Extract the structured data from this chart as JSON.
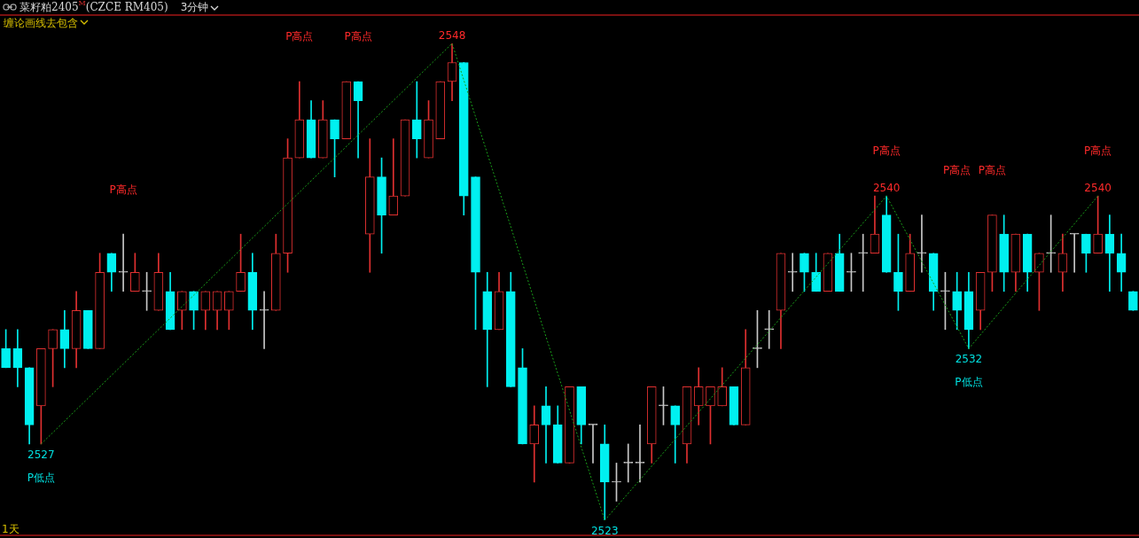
{
  "chart_data": {
    "type": "candlestick",
    "title": "菜籽粕2405$^{M}$(CZCE RM405)",
    "subtitle": "3分钟",
    "categories": [
      null,
      null,
      null,
      null,
      null,
      null,
      null,
      null,
      null,
      null,
      null,
      null,
      null,
      null,
      null,
      null,
      null,
      null,
      null,
      null,
      null,
      null,
      null,
      null,
      null,
      null,
      null,
      null,
      null,
      null,
      null,
      null,
      null,
      null,
      null,
      null,
      null,
      null,
      null,
      null,
      null,
      null,
      null,
      null,
      null,
      null,
      null,
      null,
      null,
      null,
      null,
      null,
      null,
      null,
      null,
      null,
      null,
      null,
      null,
      null,
      null,
      null,
      null,
      null,
      null,
      null,
      null,
      null,
      null,
      null,
      null,
      null,
      null,
      null,
      null,
      null,
      null,
      null,
      null,
      null,
      null,
      null,
      null,
      null,
      null,
      null,
      null,
      null,
      null,
      null,
      null,
      null,
      null,
      null,
      null,
      null,
      null
    ],
    "ohlc": [
      [
        2532,
        2533,
        2531,
        2531
      ],
      [
        2532,
        2533,
        2530,
        2531
      ],
      [
        2531,
        2531,
        2527,
        2528
      ],
      [
        2529,
        2532,
        2527,
        2532
      ],
      [
        2532,
        2533,
        2530,
        2533
      ],
      [
        2533,
        2534,
        2531,
        2532
      ],
      [
        2532,
        2535,
        2531,
        2534
      ],
      [
        2534,
        2534,
        2532,
        2532
      ],
      [
        2532,
        2537,
        2532,
        2536
      ],
      [
        2537,
        2537,
        2535,
        2536
      ],
      [
        2536,
        2538,
        2535,
        2536
      ],
      [
        2535,
        2537,
        2535,
        2536
      ],
      [
        2535,
        2536,
        2534,
        2535
      ],
      [
        2534,
        2537,
        2534,
        2536
      ],
      [
        2535,
        2536,
        2533,
        2533
      ],
      [
        2534,
        2535,
        2533,
        2535
      ],
      [
        2535,
        2535,
        2533,
        2534
      ],
      [
        2534,
        2535,
        2533,
        2535
      ],
      [
        2534,
        2535,
        2533,
        2535
      ],
      [
        2534,
        2535,
        2533,
        2535
      ],
      [
        2535,
        2538,
        2535,
        2536
      ],
      [
        2536,
        2537,
        2533,
        2534
      ],
      [
        2534,
        2535,
        2532,
        2534
      ],
      [
        2534,
        2538,
        2534,
        2537
      ],
      [
        2537,
        2543,
        2536,
        2542
      ],
      [
        2542,
        2546,
        2542,
        2544
      ],
      [
        2544,
        2545,
        2542,
        2542
      ],
      [
        2542,
        2545,
        2542,
        2544
      ],
      [
        2544,
        2544,
        2541,
        2543
      ],
      [
        2543,
        2546,
        2543,
        2546
      ],
      [
        2546,
        2546,
        2542,
        2545
      ],
      [
        2538,
        2543,
        2536,
        2541
      ],
      [
        2541,
        2542,
        2537,
        2539
      ],
      [
        2539,
        2543,
        2539,
        2540
      ],
      [
        2540,
        2544,
        2540,
        2544
      ],
      [
        2544,
        2546,
        2542,
        2543
      ],
      [
        2542,
        2545,
        2542,
        2544
      ],
      [
        2543,
        2546,
        2543,
        2546
      ],
      [
        2546,
        2548,
        2545,
        2547
      ],
      [
        2547,
        2547,
        2539,
        2540
      ],
      [
        2541,
        2541,
        2533,
        2536
      ],
      [
        2535,
        2536,
        2530,
        2533
      ],
      [
        2533,
        2536,
        2533,
        2535
      ],
      [
        2535,
        2536,
        2530,
        2530
      ],
      [
        2531,
        2532,
        2527,
        2527
      ],
      [
        2527,
        2529,
        2525,
        2528
      ],
      [
        2529,
        2530,
        2526,
        2528
      ],
      [
        2528,
        2529,
        2526,
        2526
      ],
      [
        2526,
        2530,
        2526,
        2530
      ],
      [
        2530,
        2530,
        2527,
        2528
      ],
      [
        2528,
        2528,
        2526,
        2528
      ],
      [
        2527,
        2528,
        2523,
        2525
      ],
      [
        2525,
        2526,
        2524,
        2525
      ],
      [
        2526,
        2527,
        2525,
        2526
      ],
      [
        2526,
        2528,
        2525,
        2526
      ],
      [
        2527,
        2530,
        2526,
        2530
      ],
      [
        2529,
        2530,
        2528,
        2529
      ],
      [
        2529,
        2529,
        2526,
        2528
      ],
      [
        2527,
        2530,
        2526,
        2530
      ],
      [
        2529,
        2531,
        2528,
        2530
      ],
      [
        2529,
        2530,
        2527,
        2530
      ],
      [
        2529,
        2531,
        2529,
        2530
      ],
      [
        2530,
        2530,
        2528,
        2528
      ],
      [
        2528,
        2533,
        2528,
        2531
      ],
      [
        2532,
        2534,
        2531,
        2532
      ],
      [
        2533,
        2534,
        2532,
        2533
      ],
      [
        2534,
        2537,
        2532,
        2537
      ],
      [
        2536,
        2537,
        2535,
        2536
      ],
      [
        2537,
        2537,
        2535,
        2536
      ],
      [
        2536,
        2537,
        2535,
        2535
      ],
      [
        2535,
        2537,
        2535,
        2537
      ],
      [
        2537,
        2538,
        2535,
        2535
      ],
      [
        2536,
        2537,
        2535,
        2536
      ],
      [
        2537,
        2538,
        2535,
        2537
      ],
      [
        2537,
        2540,
        2537,
        2538
      ],
      [
        2539,
        2540,
        2536,
        2536
      ],
      [
        2536,
        2538,
        2534,
        2535
      ],
      [
        2535,
        2538,
        2535,
        2537
      ],
      [
        2537,
        2539,
        2536,
        2537
      ],
      [
        2537,
        2537,
        2534,
        2535
      ],
      [
        2535,
        2536,
        2533,
        2535
      ],
      [
        2535,
        2536,
        2533,
        2534
      ],
      [
        2535,
        2536,
        2532,
        2533
      ],
      [
        2534,
        2536,
        2533,
        2536
      ],
      [
        2536,
        2539,
        2535,
        2539
      ],
      [
        2538,
        2539,
        2535,
        2536
      ],
      [
        2536,
        2538,
        2535,
        2538
      ],
      [
        2538,
        2538,
        2535,
        2536
      ],
      [
        2536,
        2537,
        2534,
        2537
      ],
      [
        2537,
        2539,
        2536,
        2537
      ],
      [
        2536,
        2538,
        2535,
        2537
      ],
      [
        2538,
        2538,
        2536,
        2538
      ],
      [
        2538,
        2538,
        2536,
        2537
      ],
      [
        2537,
        2540,
        2537,
        2538
      ],
      [
        2538,
        2539,
        2535,
        2537
      ],
      [
        2537,
        2538,
        2535,
        2536
      ],
      [
        2535,
        2535,
        2534,
        2534
      ]
    ],
    "colors": [
      "#00f0f0",
      "#00f0f0",
      "#00f0f0",
      "#e03030",
      "#e03030",
      "#00f0f0",
      "#e03030",
      "#00f0f0",
      "#e03030",
      "#00f0f0",
      "#c8c8c8",
      "#e03030",
      "#c8c8c8",
      "#e03030",
      "#00f0f0",
      "#e03030",
      "#00f0f0",
      "#e03030",
      "#e03030",
      "#e03030",
      "#e03030",
      "#00f0f0",
      "#c8c8c8",
      "#e03030",
      "#e03030",
      "#e03030",
      "#00f0f0",
      "#e03030",
      "#00f0f0",
      "#e03030",
      "#00f0f0",
      "#e03030",
      "#00f0f0",
      "#e03030",
      "#e03030",
      "#00f0f0",
      "#e03030",
      "#e03030",
      "#e03030",
      "#00f0f0",
      "#00f0f0",
      "#00f0f0",
      "#e03030",
      "#00f0f0",
      "#00f0f0",
      "#e03030",
      "#00f0f0",
      "#00f0f0",
      "#e03030",
      "#00f0f0",
      "#c8c8c8",
      "#00f0f0",
      "#c8c8c8",
      "#c8c8c8",
      "#c8c8c8",
      "#e03030",
      "#c8c8c8",
      "#00f0f0",
      "#e03030",
      "#e03030",
      "#e03030",
      "#e03030",
      "#00f0f0",
      "#e03030",
      "#c8c8c8",
      "#c8c8c8",
      "#e03030",
      "#c8c8c8",
      "#00f0f0",
      "#00f0f0",
      "#e03030",
      "#00f0f0",
      "#c8c8c8",
      "#c8c8c8",
      "#e03030",
      "#00f0f0",
      "#00f0f0",
      "#e03030",
      "#c8c8c8",
      "#00f0f0",
      "#c8c8c8",
      "#00f0f0",
      "#00f0f0",
      "#e03030",
      "#e03030",
      "#00f0f0",
      "#e03030",
      "#00f0f0",
      "#e03030",
      "#c8c8c8",
      "#e03030",
      "#c8c8c8",
      "#00f0f0",
      "#e03030",
      "#00f0f0",
      "#00f0f0",
      "#00f0f0"
    ],
    "series": [
      {
        "type": "line",
        "color": "#1aa01a",
        "line_style": "dashed",
        "values": [
          null,
          null,
          null,
          2527,
          null,
          null,
          null,
          null,
          null,
          null,
          null,
          null,
          null,
          null,
          null,
          null,
          null,
          null,
          null,
          null,
          null,
          null,
          null,
          null,
          null,
          null,
          null,
          null,
          null,
          null,
          null,
          null,
          null,
          null,
          null,
          null,
          null,
          null,
          2548,
          null,
          null,
          null,
          null,
          null,
          null,
          null,
          null,
          null,
          null,
          null,
          null,
          2523,
          null,
          null,
          null,
          null,
          null,
          null,
          null,
          null,
          null,
          null,
          null,
          null,
          null,
          null,
          null,
          null,
          null,
          null,
          null,
          null,
          null,
          null,
          null,
          2540,
          null,
          null,
          null,
          null,
          null,
          null,
          2532,
          null,
          null,
          null,
          null,
          null,
          null,
          null,
          null,
          null,
          null,
          2540,
          null,
          null,
          null
        ],
        "value_labels": [
          null,
          null,
          null,
          "2527",
          null,
          null,
          null,
          null,
          null,
          null,
          null,
          null,
          null,
          null,
          null,
          null,
          null,
          null,
          null,
          null,
          null,
          null,
          null,
          null,
          null,
          null,
          null,
          null,
          null,
          null,
          null,
          null,
          null,
          null,
          null,
          null,
          null,
          null,
          "2548",
          null,
          null,
          null,
          null,
          null,
          null,
          null,
          null,
          null,
          null,
          null,
          null,
          "2523",
          null,
          null,
          null,
          null,
          null,
          null,
          null,
          null,
          null,
          null,
          null,
          null,
          null,
          null,
          null,
          null,
          null,
          null,
          null,
          null,
          null,
          null,
          null,
          "2540",
          null,
          null,
          null,
          null,
          null,
          null,
          "2532",
          null,
          null,
          null,
          null,
          null,
          null,
          null,
          null,
          null,
          null,
          "2540",
          null,
          null,
          null
        ]
      }
    ],
    "annotations": [
      "缠论画线去包含",
      "P低点",
      "P高点",
      "P高点",
      "P高点",
      "P高点",
      "P高点",
      "P低点",
      "P高点",
      "P高点",
      "1天"
    ]
  }
}
